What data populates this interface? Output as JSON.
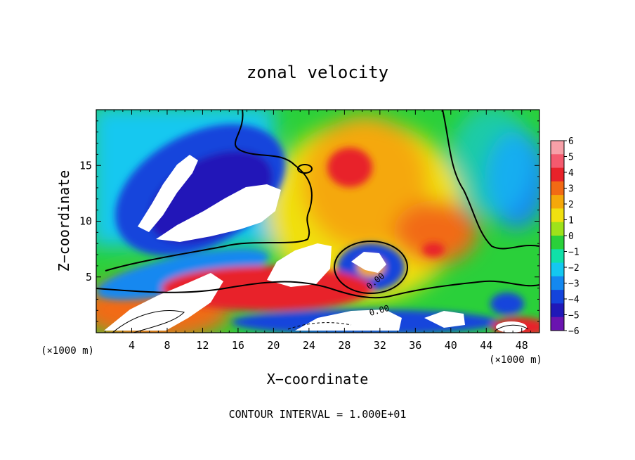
{
  "chart_data": {
    "type": "heatmap",
    "title": "zonal velocity",
    "xlabel": "X−coordinate",
    "ylabel": "Z−coordinate",
    "x_unit_label": "(×1000 m)",
    "x_unit_label_right": "(×1000 m)",
    "footer": "CONTOUR INTERVAL = 1.000E+01",
    "xlim": [
      0,
      50
    ],
    "ylim": [
      0,
      20
    ],
    "x_ticks": [
      4,
      8,
      12,
      16,
      20,
      24,
      28,
      32,
      36,
      40,
      44,
      48
    ],
    "x_tick_labels": [
      "4",
      "8",
      "12",
      "16",
      "20",
      "24",
      "28",
      "32",
      "36",
      "40",
      "44",
      "48"
    ],
    "y_ticks": [
      5,
      10,
      15
    ],
    "y_tick_labels": [
      "5",
      "10",
      "15"
    ],
    "colorbar": {
      "levels": [
        6,
        5,
        4,
        3,
        2,
        1,
        0,
        -1,
        -2,
        -3,
        -4,
        -5,
        -6
      ],
      "labels": [
        "6",
        "5",
        "4",
        "3",
        "2",
        "1",
        "0",
        "−1",
        "−2",
        "−3",
        "−4",
        "−5",
        "−6"
      ],
      "colors": [
        "#f7a0a8",
        "#f45a6e",
        "#e8222a",
        "#f26a14",
        "#f5a80a",
        "#f0e010",
        "#9ee21a",
        "#2ad03a",
        "#10e0a8",
        "#14c8f0",
        "#1488f0",
        "#1444dc",
        "#2018b8",
        "#6a14b0"
      ]
    },
    "contour_labels": [
      "0.00",
      "0.00"
    ]
  },
  "colors": {
    "neg_extreme": "#6a14b0",
    "negative_strong": "#1444dc",
    "negative_weak": "#14c8f0",
    "near_zero": "#2ad03a",
    "positive_weak": "#f0e010",
    "positive_strong": "#e8222a",
    "pos_extreme": "#f7a0a8",
    "saturated": "#ffffff"
  }
}
